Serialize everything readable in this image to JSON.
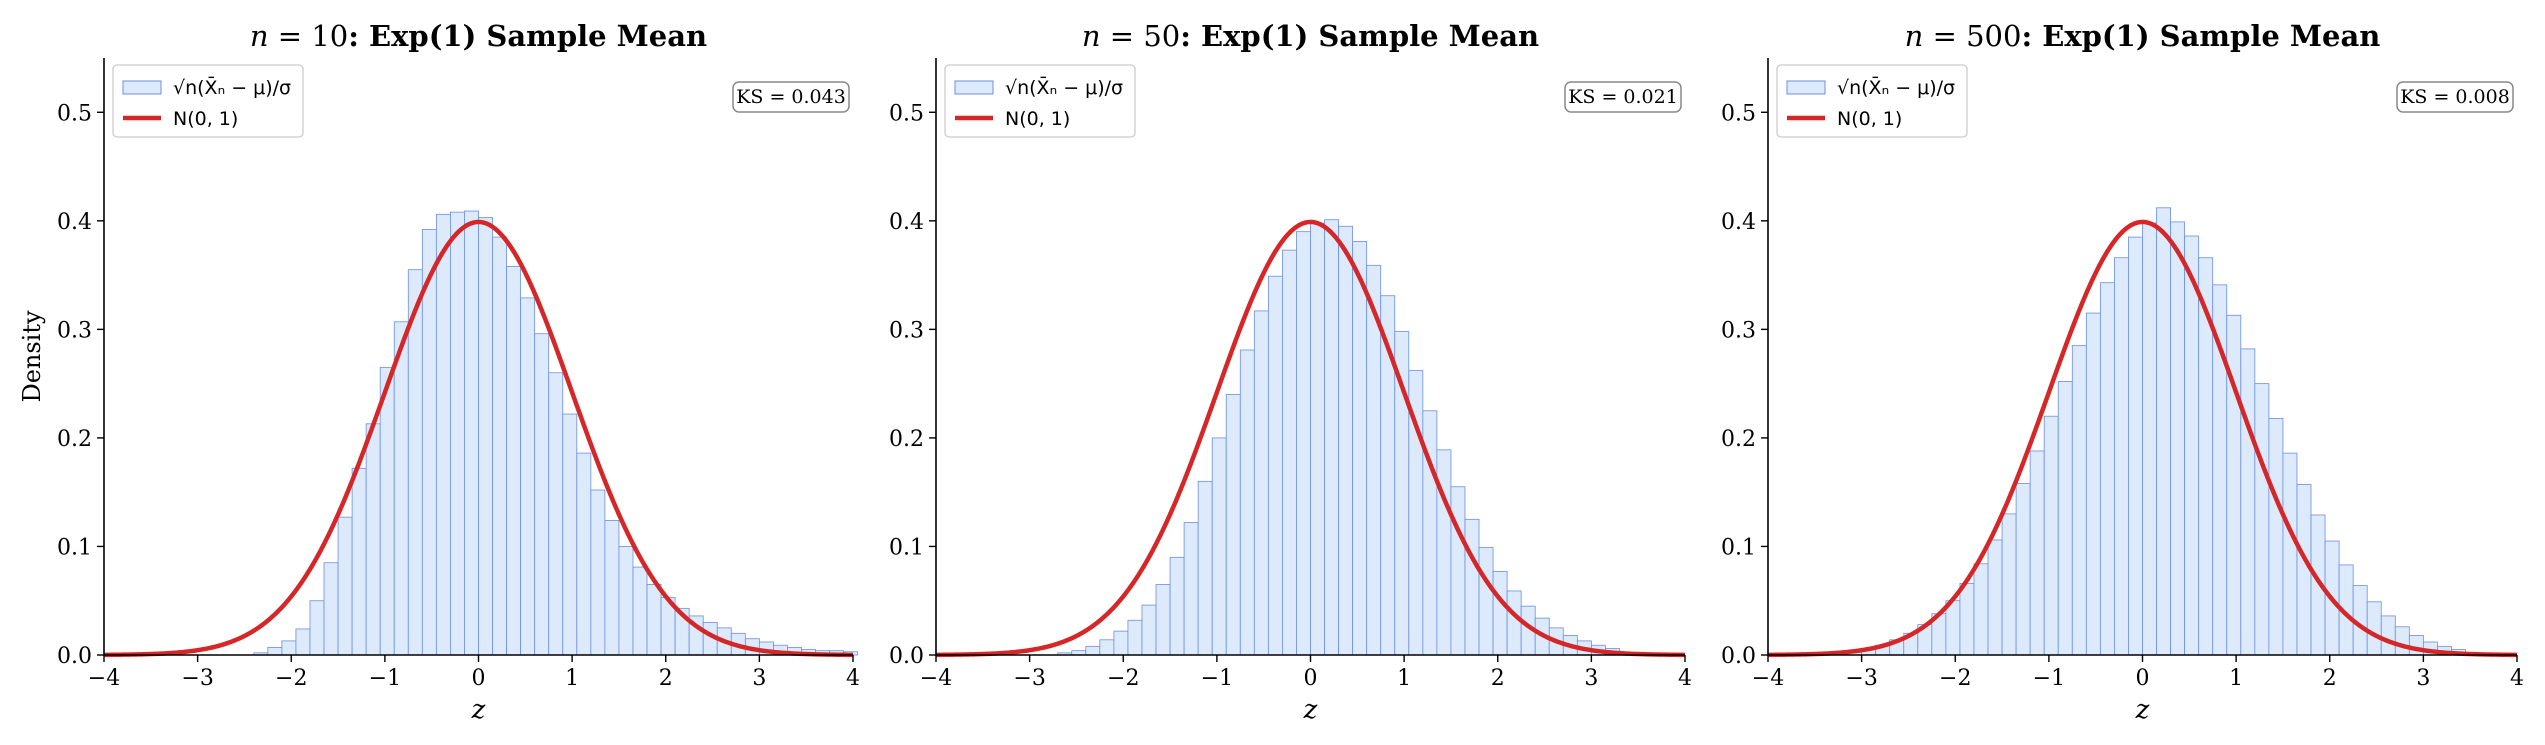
{
  "colors": {
    "hist_fill": "#dceafc",
    "hist_edge": "#6b8fe0",
    "normal_curve": "#d62728",
    "axis": "#000000"
  },
  "chart_data": [
    {
      "type": "bar",
      "title_prefix": "n",
      "title_value": " = 10",
      "title_rest": ": Exp(1) Sample Mean",
      "xlabel": "z",
      "ylabel": "Density",
      "xlim": [
        -4,
        4
      ],
      "ylim": [
        0,
        0.55
      ],
      "xticks": [
        "−4",
        "−3",
        "−2",
        "−1",
        "0",
        "1",
        "2",
        "3",
        "4"
      ],
      "yticks": [
        "0.0",
        "0.1",
        "0.2",
        "0.3",
        "0.4",
        "0.5"
      ],
      "legend": [
        "√n(X̄ₙ − μ)/σ",
        "N(0, 1)"
      ],
      "legend_position": "upper left",
      "annotation": "KS = 0.043",
      "bin_width": 0.15,
      "bin_start": -2.4,
      "values": [
        0.002,
        0.007,
        0.013,
        0.024,
        0.05,
        0.085,
        0.127,
        0.172,
        0.213,
        0.265,
        0.307,
        0.355,
        0.392,
        0.406,
        0.408,
        0.409,
        0.403,
        0.385,
        0.358,
        0.329,
        0.296,
        0.26,
        0.222,
        0.186,
        0.152,
        0.124,
        0.1,
        0.081,
        0.065,
        0.053,
        0.043,
        0.036,
        0.03,
        0.025,
        0.02,
        0.015,
        0.012,
        0.009,
        0.007,
        0.005,
        0.004,
        0.004,
        0.003
      ],
      "series": [
        {
          "name": "√n(X̄ₙ − μ)/σ",
          "kind": "histogram"
        },
        {
          "name": "N(0, 1)",
          "kind": "line"
        }
      ]
    },
    {
      "type": "bar",
      "title_prefix": "n",
      "title_value": " = 50",
      "title_rest": ": Exp(1) Sample Mean",
      "xlabel": "z",
      "ylabel": "",
      "xlim": [
        -4,
        4
      ],
      "ylim": [
        0,
        0.55
      ],
      "xticks": [
        "−4",
        "−3",
        "−2",
        "−1",
        "0",
        "1",
        "2",
        "3",
        "4"
      ],
      "yticks": [
        "0.0",
        "0.1",
        "0.2",
        "0.3",
        "0.4",
        "0.5"
      ],
      "legend": [
        "√n(X̄ₙ − μ)/σ",
        "N(0, 1)"
      ],
      "legend_position": "upper left",
      "annotation": "KS = 0.021",
      "bin_width": 0.15,
      "bin_start": -2.7,
      "values": [
        0.002,
        0.004,
        0.008,
        0.014,
        0.022,
        0.032,
        0.046,
        0.065,
        0.09,
        0.122,
        0.16,
        0.2,
        0.24,
        0.281,
        0.317,
        0.349,
        0.373,
        0.39,
        0.398,
        0.401,
        0.395,
        0.381,
        0.359,
        0.331,
        0.298,
        0.262,
        0.225,
        0.189,
        0.155,
        0.125,
        0.099,
        0.077,
        0.059,
        0.045,
        0.034,
        0.025,
        0.018,
        0.013,
        0.009,
        0.006
      ],
      "series": [
        {
          "name": "√n(X̄ₙ − μ)/σ",
          "kind": "histogram"
        },
        {
          "name": "N(0, 1)",
          "kind": "line"
        }
      ]
    },
    {
      "type": "bar",
      "title_prefix": "n",
      "title_value": " = 500",
      "title_rest": ": Exp(1) Sample Mean",
      "xlabel": "z",
      "ylabel": "",
      "xlim": [
        -4,
        4
      ],
      "ylim": [
        0,
        0.55
      ],
      "xticks": [
        "−4",
        "−3",
        "−2",
        "−1",
        "0",
        "1",
        "2",
        "3",
        "4"
      ],
      "yticks": [
        "0.0",
        "0.1",
        "0.2",
        "0.3",
        "0.4",
        "0.5"
      ],
      "legend": [
        "√n(X̄ₙ − μ)/σ",
        "N(0, 1)"
      ],
      "legend_position": "upper left",
      "annotation": "KS = 0.008",
      "bin_width": 0.15,
      "bin_start": -3.3,
      "values": [
        0.002,
        0.003,
        0.006,
        0.009,
        0.014,
        0.02,
        0.028,
        0.038,
        0.05,
        0.066,
        0.084,
        0.106,
        0.13,
        0.158,
        0.188,
        0.22,
        0.252,
        0.285,
        0.315,
        0.343,
        0.366,
        0.385,
        0.398,
        0.412,
        0.399,
        0.386,
        0.366,
        0.341,
        0.313,
        0.282,
        0.25,
        0.218,
        0.186,
        0.157,
        0.129,
        0.105,
        0.083,
        0.064,
        0.049,
        0.036,
        0.026,
        0.018,
        0.012,
        0.008,
        0.005
      ],
      "series": [
        {
          "name": "√n(X̄ₙ − μ)/σ",
          "kind": "histogram"
        },
        {
          "name": "N(0, 1)",
          "kind": "line"
        }
      ]
    }
  ]
}
